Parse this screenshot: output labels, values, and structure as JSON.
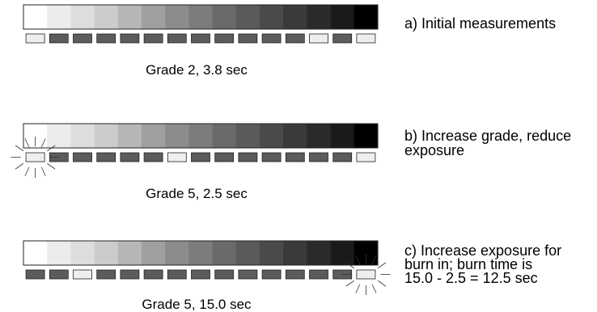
{
  "wedge_tones": [
    "#ffffff",
    "#ececec",
    "#dddddd",
    "#cccccc",
    "#b6b6b6",
    "#9f9f9f",
    "#8c8c8c",
    "#7c7c7c",
    "#6a6a6a",
    "#5a5a5a",
    "#4a4a4a",
    "#3a3a3a",
    "#2a2a2a",
    "#1a1a1a",
    "#000000"
  ],
  "indicator_colors": {
    "lit": "#eeeeee",
    "dark": "#5c5c5c"
  },
  "panels": [
    {
      "id": "a",
      "caption": "Grade 2, 3.8 sec",
      "description": [
        "a) Initial measurements"
      ],
      "lit_indicators": [
        0,
        12,
        14
      ],
      "highlighted_indicators": []
    },
    {
      "id": "b",
      "caption": "Grade 5, 2.5 sec",
      "description": [
        "b) Increase grade, reduce",
        "exposure"
      ],
      "lit_indicators": [
        0,
        6,
        14
      ],
      "highlighted_indicators": [
        0
      ]
    },
    {
      "id": "c",
      "caption": "Grade 5, 15.0 sec",
      "description": [
        "c) Increase exposure for",
        "burn in; burn time is",
        "15.0 - 2.5 = 12.5 sec"
      ],
      "lit_indicators": [
        2,
        14
      ],
      "highlighted_indicators": [
        14
      ]
    }
  ]
}
